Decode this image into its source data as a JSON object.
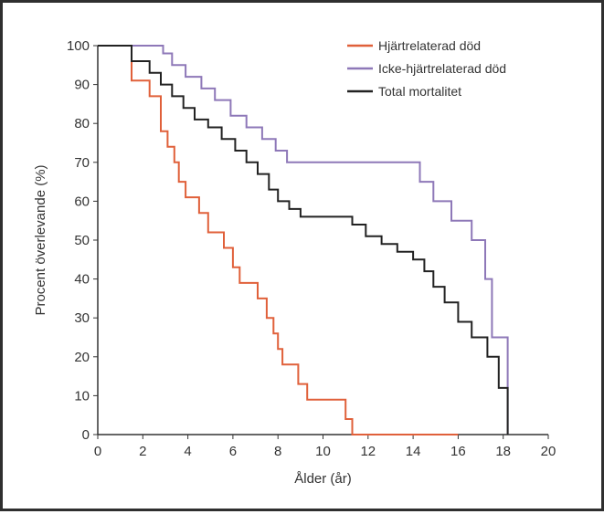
{
  "chart_data": {
    "type": "line",
    "title": "",
    "xlabel": "Ålder (år)",
    "ylabel": "Procent överlevande (%)",
    "xlim": [
      0,
      20
    ],
    "ylim": [
      0,
      100
    ],
    "xticks": [
      0,
      2,
      4,
      6,
      8,
      10,
      12,
      14,
      16,
      18,
      20
    ],
    "yticks": [
      0,
      10,
      20,
      30,
      40,
      50,
      60,
      70,
      80,
      90,
      100
    ],
    "grid": false,
    "legend_position": "top-right",
    "series": [
      {
        "name": "Hjärtrelaterad död",
        "color": "#e0603a",
        "step": true,
        "x": [
          0,
          1.5,
          1.5,
          2.3,
          2.8,
          3.1,
          3.4,
          3.6,
          3.9,
          4.5,
          4.9,
          5.6,
          6.0,
          6.3,
          7.1,
          7.5,
          7.8,
          8.0,
          8.2,
          8.9,
          9.3,
          10.8,
          11.0,
          11.3,
          11.6,
          12.3,
          12.5,
          14.1,
          14.4,
          14.8,
          15.3,
          15.9,
          16.0
        ],
        "y": [
          100,
          100,
          91,
          87,
          78,
          74,
          70,
          65,
          61,
          57,
          52,
          48,
          43,
          39,
          35,
          30,
          26,
          22,
          18,
          13,
          9,
          9,
          4,
          0,
          0,
          0,
          0,
          0,
          0,
          0,
          0,
          0,
          0
        ]
      },
      {
        "name": "Icke-hjärtrelaterad död",
        "color": "#8e78b8",
        "step": true,
        "x": [
          0,
          1.5,
          1.5,
          2.9,
          3.3,
          3.9,
          4.6,
          5.2,
          5.9,
          6.6,
          7.3,
          7.9,
          8.4,
          13.8,
          14.3,
          14.9,
          15.7,
          16.6,
          17.2,
          17.5,
          18.0,
          18.2
        ],
        "y": [
          100,
          100,
          100,
          98,
          95,
          92,
          89,
          86,
          82,
          79,
          76,
          73,
          70,
          70,
          65,
          60,
          55,
          50,
          40,
          25,
          25,
          0
        ]
      },
      {
        "name": "Total mortalitet",
        "color": "#222222",
        "step": true,
        "x": [
          0,
          1.5,
          1.5,
          2.3,
          2.8,
          3.3,
          3.8,
          4.3,
          4.9,
          5.5,
          6.1,
          6.6,
          7.1,
          7.6,
          8.0,
          8.5,
          9.0,
          10.8,
          11.3,
          11.9,
          12.6,
          13.3,
          14.0,
          14.5,
          14.9,
          15.4,
          16.0,
          16.6,
          17.3,
          17.8,
          18.2
        ],
        "y": [
          100,
          100,
          96,
          93,
          90,
          87,
          84,
          81,
          79,
          76,
          73,
          70,
          67,
          63,
          60,
          58,
          56,
          56,
          54,
          51,
          49,
          47,
          45,
          42,
          38,
          34,
          29,
          25,
          20,
          12,
          0
        ]
      }
    ]
  }
}
